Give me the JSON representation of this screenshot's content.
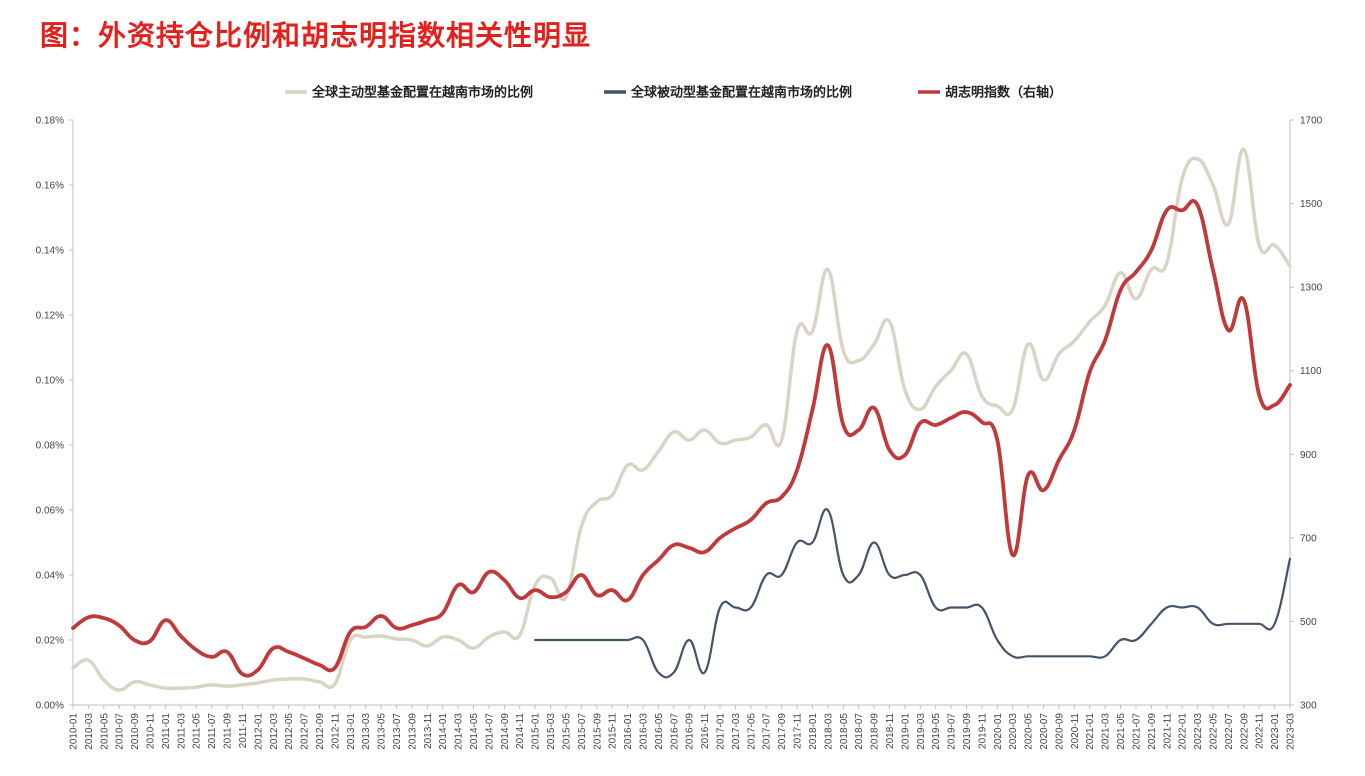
{
  "title": "图：外资持仓比例和胡志明指数相关性明显",
  "colors": {
    "title": "#e3201b",
    "active": "#d9d4c4",
    "passive": "#44546a",
    "vnindex": "#c0393b",
    "axis": "#bfbfbf"
  },
  "chart_data": {
    "type": "line",
    "title": "图：外资持仓比例和胡志明指数相关性明显",
    "legend_position": "top",
    "x": [
      "2010-01",
      "2010-03",
      "2010-05",
      "2010-07",
      "2010-09",
      "2010-11",
      "2011-01",
      "2011-03",
      "2011-05",
      "2011-07",
      "2011-09",
      "2011-11",
      "2012-01",
      "2012-03",
      "2012-05",
      "2012-07",
      "2012-09",
      "2012-11",
      "2013-01",
      "2013-03",
      "2013-05",
      "2013-07",
      "2013-09",
      "2013-11",
      "2014-01",
      "2014-03",
      "2014-05",
      "2014-07",
      "2014-09",
      "2014-11",
      "2015-01",
      "2015-03",
      "2015-05",
      "2015-07",
      "2015-09",
      "2015-11",
      "2016-01",
      "2016-03",
      "2016-05",
      "2016-07",
      "2016-09",
      "2016-11",
      "2017-01",
      "2017-03",
      "2017-05",
      "2017-07",
      "2017-09",
      "2017-11",
      "2018-01",
      "2018-03",
      "2018-05",
      "2018-07",
      "2018-09",
      "2018-11",
      "2019-01",
      "2019-03",
      "2019-05",
      "2019-07",
      "2019-09",
      "2019-11",
      "2020-01",
      "2020-03",
      "2020-05",
      "2020-07",
      "2020-09",
      "2020-11",
      "2021-01",
      "2021-03",
      "2021-05",
      "2021-07",
      "2021-09",
      "2021-11",
      "2022-01",
      "2022-03",
      "2022-05",
      "2022-07",
      "2022-09",
      "2022-11",
      "2023-01",
      "2023-03"
    ],
    "left_axis": {
      "ylim": [
        0,
        0.18
      ],
      "ticks": [
        "0.00%",
        "0.02%",
        "0.04%",
        "0.06%",
        "0.08%",
        "0.10%",
        "0.12%",
        "0.14%",
        "0.16%",
        "0.18%"
      ],
      "unit": "%"
    },
    "right_axis": {
      "ylim": [
        300,
        1700
      ],
      "ticks": [
        "300",
        "500",
        "700",
        "900",
        "1100",
        "1300",
        "1500",
        "1700"
      ]
    },
    "series": [
      {
        "name": "全球主动型基金配置在越南市场的比例",
        "axis": "left",
        "color": "#d9d4c4",
        "values": [
          0.0114,
          0.0138,
          0.0077,
          0.0046,
          0.0071,
          0.0062,
          0.0052,
          0.0052,
          0.0055,
          0.0062,
          0.0058,
          0.0062,
          0.0068,
          0.0077,
          0.008,
          0.008,
          0.0071,
          0.0065,
          0.02,
          0.0209,
          0.0212,
          0.0203,
          0.02,
          0.0182,
          0.0209,
          0.02,
          0.0175,
          0.0209,
          0.0225,
          0.0215,
          0.037,
          0.039,
          0.0332,
          0.055,
          0.0625,
          0.0646,
          0.0738,
          0.0723,
          0.078,
          0.084,
          0.0815,
          0.0846,
          0.0806,
          0.0815,
          0.0825,
          0.0862,
          0.0815,
          0.115,
          0.115,
          0.134,
          0.109,
          0.106,
          0.111,
          0.118,
          0.097,
          0.091,
          0.098,
          0.103,
          0.108,
          0.095,
          0.092,
          0.091,
          0.111,
          0.1,
          0.108,
          0.112,
          0.118,
          0.123,
          0.133,
          0.125,
          0.134,
          0.136,
          0.162,
          0.168,
          0.16,
          0.148,
          0.171,
          0.1415,
          0.1415,
          0.135
        ]
      },
      {
        "name": "全球被动型基金配置在越南市场的比例",
        "axis": "left",
        "color": "#44546a",
        "values": [
          null,
          null,
          null,
          null,
          null,
          null,
          null,
          null,
          null,
          null,
          null,
          null,
          null,
          null,
          null,
          null,
          null,
          null,
          null,
          null,
          null,
          null,
          null,
          null,
          null,
          null,
          null,
          null,
          null,
          null,
          0.02,
          0.02,
          0.02,
          0.02,
          0.02,
          0.02,
          0.02,
          0.02,
          0.01,
          0.01,
          0.02,
          0.01,
          0.03,
          0.03,
          0.03,
          0.04,
          0.04,
          0.05,
          0.05,
          0.06,
          0.04,
          0.04,
          0.05,
          0.04,
          0.04,
          0.04,
          0.03,
          0.03,
          0.03,
          0.03,
          0.02,
          0.015,
          0.015,
          0.015,
          0.015,
          0.015,
          0.015,
          0.015,
          0.02,
          0.02,
          0.025,
          0.03,
          0.03,
          0.03,
          0.025,
          0.025,
          0.025,
          0.025,
          0.025,
          0.045
        ]
      },
      {
        "name": "胡志明指数（右轴）",
        "axis": "right",
        "color": "#c0393b",
        "values": [
          484,
          510,
          508,
          490,
          455,
          453,
          503,
          465,
          432,
          415,
          427,
          374,
          384,
          436,
          427,
          412,
          396,
          389,
          475,
          487,
          513,
          484,
          491,
          503,
          520,
          587,
          570,
          618,
          599,
          556,
          575,
          558,
          570,
          611,
          563,
          575,
          551,
          611,
          647,
          683,
          676,
          666,
          700,
          723,
          743,
          783,
          798,
          862,
          1006,
          1161,
          970,
          958,
          1011,
          910,
          898,
          975,
          970,
          987,
          1001,
          977,
          934,
          659,
          850,
          814,
          886,
          958,
          1097,
          1173,
          1293,
          1336,
          1389,
          1484,
          1484,
          1496,
          1341,
          1197,
          1269,
          1042,
          1018,
          1066
        ]
      }
    ]
  }
}
